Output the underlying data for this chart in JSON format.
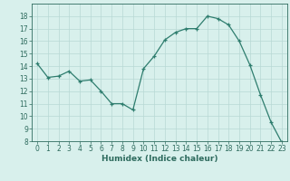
{
  "x": [
    0,
    1,
    2,
    3,
    4,
    5,
    6,
    7,
    8,
    9,
    10,
    11,
    12,
    13,
    14,
    15,
    16,
    17,
    18,
    19,
    20,
    21,
    22,
    23
  ],
  "y": [
    14.2,
    13.1,
    13.2,
    13.6,
    12.8,
    12.9,
    12.0,
    11.0,
    11.0,
    10.5,
    13.8,
    14.8,
    16.1,
    16.7,
    17.0,
    17.0,
    18.0,
    17.8,
    17.3,
    16.0,
    14.1,
    11.7,
    9.5,
    7.9
  ],
  "line_color": "#2e7d6e",
  "marker": "+",
  "marker_size": 3,
  "bg_color": "#d8f0ec",
  "grid_color": "#b8d8d4",
  "xlabel": "Humidex (Indice chaleur)",
  "ylim": [
    8,
    19
  ],
  "xlim": [
    -0.5,
    23.5
  ],
  "yticks": [
    8,
    9,
    10,
    11,
    12,
    13,
    14,
    15,
    16,
    17,
    18
  ],
  "xticks": [
    0,
    1,
    2,
    3,
    4,
    5,
    6,
    7,
    8,
    9,
    10,
    11,
    12,
    13,
    14,
    15,
    16,
    17,
    18,
    19,
    20,
    21,
    22,
    23
  ],
  "tick_color": "#2e6b5e",
  "xlabel_fontsize": 6.5,
  "tick_fontsize": 5.5,
  "line_width": 0.9
}
